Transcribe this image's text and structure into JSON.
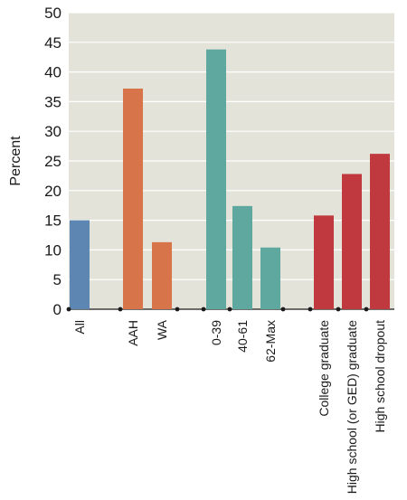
{
  "chart_data": {
    "type": "bar",
    "title": "",
    "xlabel": "",
    "ylabel": "Percent",
    "ylim": [
      0,
      50
    ],
    "yticks": [
      0,
      5,
      10,
      15,
      20,
      25,
      30,
      35,
      40,
      45,
      50
    ],
    "grid": true,
    "background_color": "#e4e3da",
    "grid_color": "#ffffff",
    "groups": [
      {
        "color": "#5d86b2",
        "categories": [
          "All"
        ],
        "values": [
          15
        ]
      },
      {
        "color": "#d87449",
        "categories": [
          "AAH",
          "WA"
        ],
        "values": [
          37.2,
          11.3
        ]
      },
      {
        "color": "#5ea8a0",
        "categories": [
          "0-39",
          "40-61",
          "62-Max"
        ],
        "values": [
          43.8,
          17.4,
          10.4
        ]
      },
      {
        "color": "#c0393e",
        "categories": [
          "College graduate",
          "High school (or GED) graduate",
          "High school dropout"
        ],
        "values": [
          15.8,
          22.8,
          26.2
        ]
      }
    ]
  }
}
